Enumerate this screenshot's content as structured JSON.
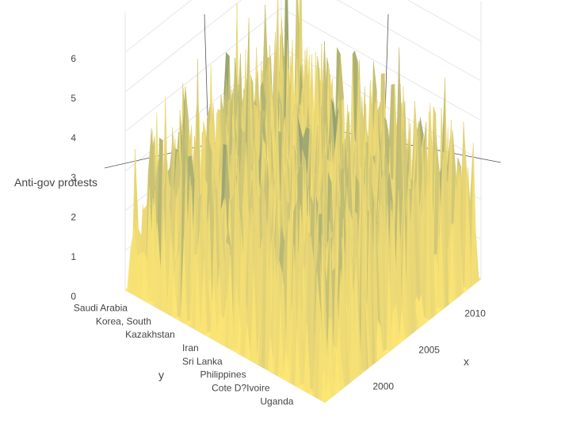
{
  "chart_data": {
    "type": "surface",
    "title": "",
    "xlabel": "x",
    "ylabel": "y",
    "zlabel": "Anti-gov protests",
    "x_ticks": [
      "2000",
      "2005",
      "2010"
    ],
    "y_ticks": [
      "Saudi Arabia",
      "Korea, South",
      "Kazakhstan",
      "Iran",
      "Sri Lanka",
      "Philippines",
      "Cote D?Ivoire",
      "Uganda"
    ],
    "z_ticks": [
      "0",
      "1",
      "2",
      "3",
      "4",
      "5",
      "6"
    ],
    "xlim": [
      1996,
      2013
    ],
    "zlim": [
      0,
      7
    ],
    "colorscale": [
      "#ffe873",
      "#e6d477",
      "#8f9f71",
      "#4d7f82"
    ],
    "grid": true
  }
}
